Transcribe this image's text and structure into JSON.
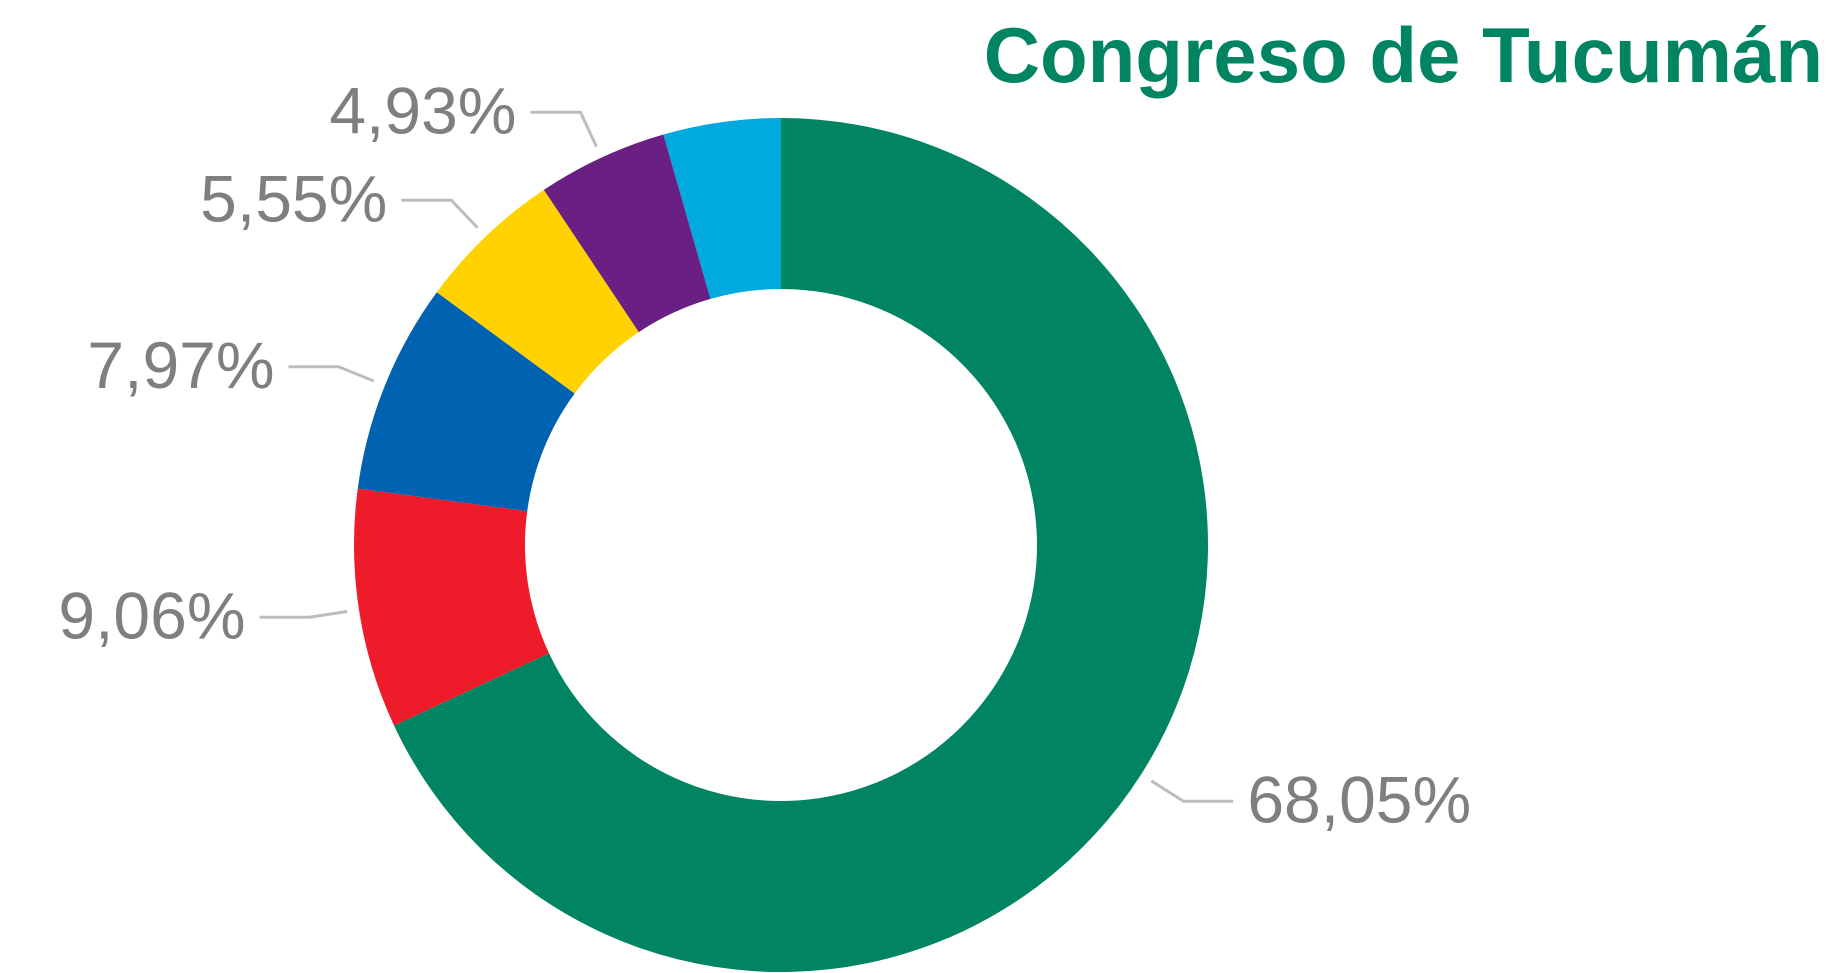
{
  "chart_data": {
    "type": "donut",
    "title": "Congreso de Tucumán",
    "values": [
      68.05,
      9.06,
      7.97,
      5.55,
      4.93,
      4.44
    ],
    "value_labels": [
      "68,05%",
      "9,06%",
      "7,97%",
      "5,55%",
      "4,93%",
      null
    ],
    "colors": [
      "#008462",
      "#ee1b2b",
      "#0062b1",
      "#ffd200",
      "#6a1f82",
      "#00aadf"
    ]
  }
}
